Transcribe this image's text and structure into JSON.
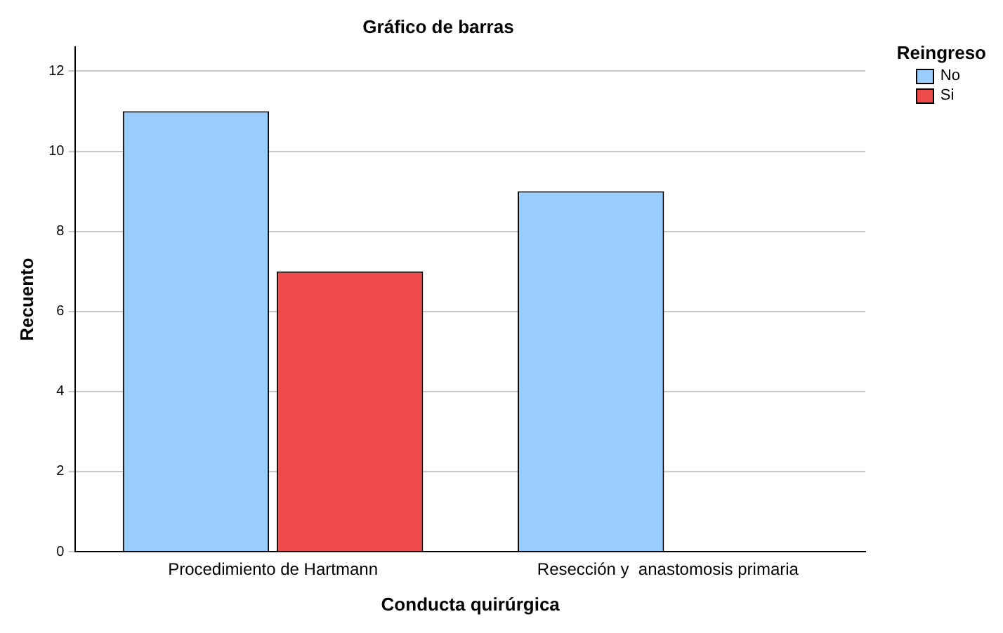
{
  "chart_data": {
    "type": "bar",
    "title": "Gráfico de barras",
    "xlabel": "Conducta quirúrgica",
    "ylabel": "Recuento",
    "legend_title": "Reingreso",
    "categories": [
      "Procedimiento de Hartmann",
      "Resección y  anastomosis primaria"
    ],
    "series": [
      {
        "name": "No",
        "color": "#99ccff",
        "values": [
          11,
          9
        ]
      },
      {
        "name": "Si",
        "color": "#ee4a4a",
        "values": [
          7,
          null
        ]
      }
    ],
    "ylim": [
      0,
      12.6
    ],
    "yticks": [
      0,
      2,
      4,
      6,
      8,
      10,
      12
    ],
    "grid": "y",
    "legend": "top right"
  }
}
